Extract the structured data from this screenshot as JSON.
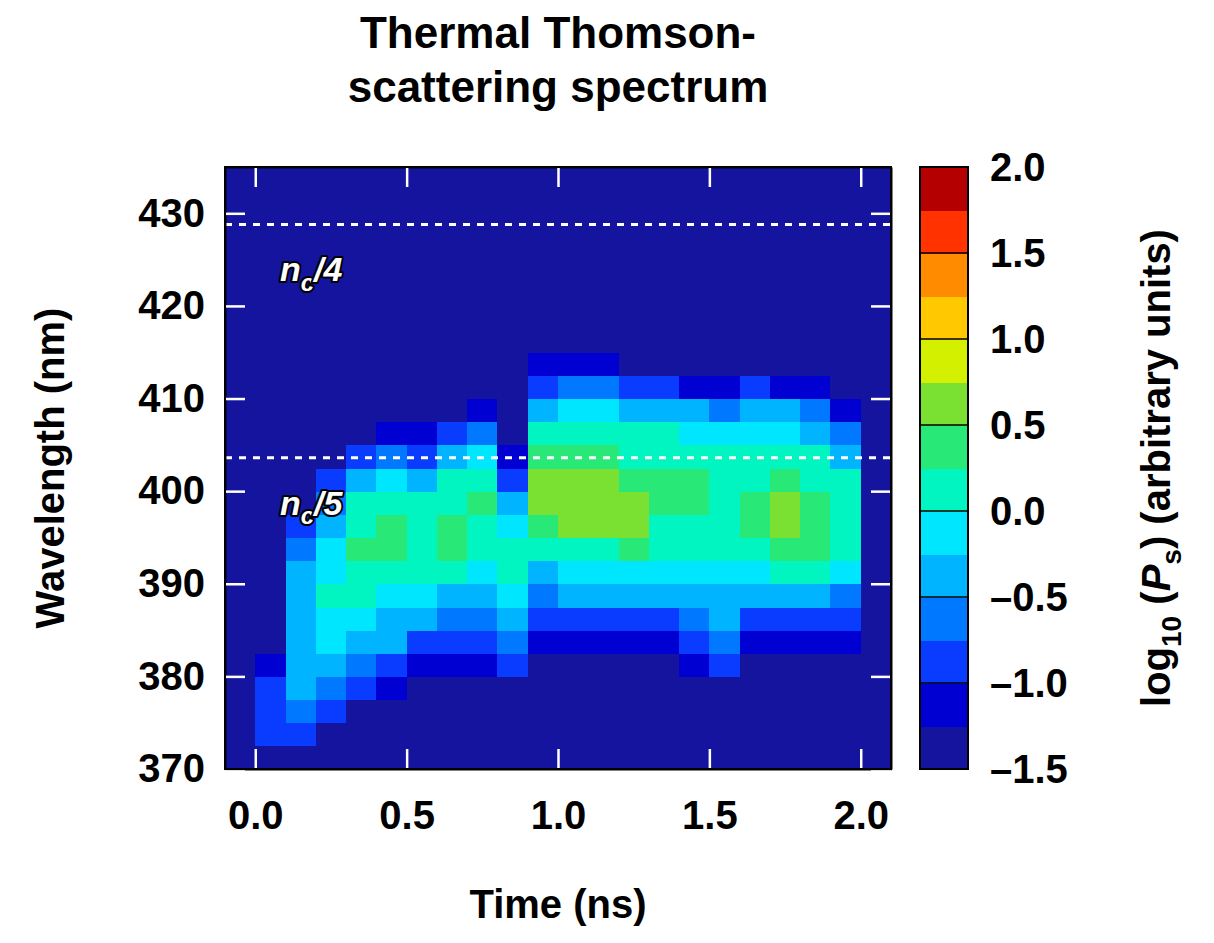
{
  "chart_data": {
    "type": "heatmap",
    "title": "Thermal Thomson-scattering spectrum",
    "x_label": "Time (ns)",
    "y_label": "Wavelength (nm)",
    "x": [
      -0.05,
      0.05,
      0.15,
      0.25,
      0.35,
      0.45,
      0.55,
      0.65,
      0.75,
      0.85,
      0.95,
      1.05,
      1.15,
      1.25,
      1.35,
      1.45,
      1.55,
      1.65,
      1.75,
      1.85,
      1.95,
      2.05
    ],
    "y": [
      371.25,
      373.75,
      376.25,
      378.75,
      381.25,
      383.75,
      386.25,
      388.75,
      391.25,
      393.75,
      396.25,
      398.75,
      401.25,
      403.75,
      406.25,
      408.75,
      411.25,
      413.75,
      416.25,
      418.75,
      421.25,
      423.75,
      426.25,
      428.75,
      431.25,
      433.75
    ],
    "z": [
      [
        -1.5,
        -1.3,
        -1.4,
        -1.5,
        -1.5,
        -1.5,
        -1.5,
        -1.5,
        -1.5,
        -1.5,
        -1.5,
        -1.5,
        -1.5,
        -1.5,
        -1.5,
        -1.5,
        -1.5,
        -1.5,
        -1.5,
        -1.5,
        -1.5,
        -1.5
      ],
      [
        -1.5,
        -1.0,
        -1.0,
        -1.3,
        -1.5,
        -1.5,
        -1.5,
        -1.5,
        -1.5,
        -1.5,
        -1.5,
        -1.5,
        -1.5,
        -1.5,
        -1.5,
        -1.5,
        -1.5,
        -1.5,
        -1.5,
        -1.5,
        -1.5,
        -1.5
      ],
      [
        -1.5,
        -0.9,
        -0.7,
        -1.0,
        -1.3,
        -1.5,
        -1.5,
        -1.5,
        -1.5,
        -1.5,
        -1.5,
        -1.5,
        -1.5,
        -1.5,
        -1.5,
        -1.5,
        -1.5,
        -1.5,
        -1.5,
        -1.5,
        -1.5,
        -1.5
      ],
      [
        -1.5,
        -1.0,
        -0.5,
        -0.6,
        -1.0,
        -1.2,
        -1.5,
        -1.5,
        -1.5,
        -1.3,
        -1.5,
        -1.5,
        -1.5,
        -1.5,
        -1.5,
        -1.5,
        -1.5,
        -1.5,
        -1.5,
        -1.5,
        -1.5,
        -1.5
      ],
      [
        -1.5,
        -1.2,
        -0.4,
        -0.3,
        -0.6,
        -0.8,
        -1.1,
        -1.2,
        -1.1,
        -0.9,
        -1.3,
        -1.3,
        -1.3,
        -1.3,
        -1.3,
        -1.2,
        -1.0,
        -1.3,
        -1.3,
        -1.3,
        -1.4,
        -1.5
      ],
      [
        -1.5,
        -1.5,
        -0.4,
        -0.2,
        -0.4,
        -0.5,
        -0.8,
        -0.9,
        -0.9,
        -0.6,
        -1.1,
        -1.1,
        -1.1,
        -1.1,
        -1.1,
        -0.9,
        -0.7,
        -1.1,
        -1.1,
        -1.1,
        -1.2,
        -1.5
      ],
      [
        -1.5,
        -1.5,
        -0.3,
        -0.1,
        -0.2,
        -0.3,
        -0.5,
        -0.6,
        -0.6,
        -0.3,
        -0.9,
        -0.8,
        -0.8,
        -0.8,
        -0.8,
        -0.7,
        -0.5,
        -0.8,
        -0.8,
        -0.8,
        -1.0,
        -1.5
      ],
      [
        -1.5,
        -1.5,
        -0.3,
        0.0,
        0.1,
        -0.1,
        -0.2,
        -0.3,
        -0.3,
        -0.1,
        -0.6,
        -0.5,
        -0.5,
        -0.5,
        -0.5,
        -0.4,
        -0.3,
        -0.4,
        -0.4,
        -0.4,
        -0.6,
        -1.5
      ],
      [
        -1.5,
        -1.5,
        -0.5,
        -0.1,
        0.2,
        0.1,
        0.1,
        0.0,
        -0.1,
        0.2,
        -0.3,
        -0.2,
        -0.2,
        -0.1,
        -0.2,
        -0.2,
        -0.1,
        -0.1,
        0.0,
        0.0,
        -0.2,
        -1.5
      ],
      [
        -1.5,
        -1.5,
        -0.7,
        -0.2,
        0.4,
        0.3,
        0.2,
        0.3,
        0.1,
        0.1,
        0.0,
        0.2,
        0.2,
        0.3,
        0.1,
        0.1,
        0.1,
        0.2,
        0.3,
        0.3,
        0.0,
        -1.5
      ],
      [
        -1.5,
        -1.5,
        -1.0,
        -0.4,
        0.2,
        0.3,
        0.2,
        0.3,
        0.2,
        -0.1,
        0.3,
        0.5,
        0.5,
        0.5,
        0.2,
        0.2,
        0.2,
        0.3,
        0.5,
        0.4,
        0.1,
        -1.5
      ],
      [
        -1.5,
        -1.5,
        -1.3,
        -0.7,
        0.0,
        0.2,
        0.1,
        0.2,
        0.3,
        -0.4,
        0.5,
        0.6,
        0.6,
        0.5,
        0.3,
        0.3,
        0.2,
        0.3,
        0.5,
        0.4,
        0.1,
        -1.5
      ],
      [
        -1.5,
        -1.5,
        -1.5,
        -1.0,
        -0.4,
        -0.1,
        -0.3,
        0.0,
        0.2,
        -0.8,
        0.5,
        0.6,
        0.55,
        0.4,
        0.3,
        0.3,
        0.2,
        0.2,
        0.3,
        0.2,
        0.0,
        -1.5
      ],
      [
        -1.5,
        -1.5,
        -1.5,
        -1.3,
        -0.9,
        -0.6,
        -0.8,
        -0.4,
        -0.2,
        -1.2,
        0.3,
        0.4,
        0.4,
        0.2,
        0.2,
        0.2,
        0.1,
        0.1,
        0.1,
        0.0,
        -0.3,
        -1.5
      ],
      [
        -1.5,
        -1.5,
        -1.5,
        -1.5,
        -1.3,
        -1.1,
        -1.2,
        -1.0,
        -0.7,
        -1.5,
        0.0,
        0.1,
        0.1,
        0.0,
        0.0,
        -0.1,
        -0.2,
        -0.1,
        -0.1,
        -0.3,
        -0.7,
        -1.5
      ],
      [
        -1.5,
        -1.5,
        -1.5,
        -1.5,
        -1.5,
        -1.5,
        -1.5,
        -1.3,
        -1.2,
        -1.5,
        -0.4,
        -0.2,
        -0.2,
        -0.3,
        -0.4,
        -0.5,
        -0.6,
        -0.4,
        -0.4,
        -0.7,
        -1.1,
        -1.5
      ],
      [
        -1.5,
        -1.5,
        -1.5,
        -1.5,
        -1.5,
        -1.5,
        -1.5,
        -1.5,
        -1.5,
        -1.5,
        -0.8,
        -0.6,
        -0.6,
        -0.8,
        -1.0,
        -1.1,
        -1.2,
        -1.0,
        -1.1,
        -1.2,
        -1.4,
        -1.5
      ],
      [
        -1.5,
        -1.5,
        -1.5,
        -1.5,
        -1.5,
        -1.5,
        -1.5,
        -1.5,
        -1.5,
        -1.5,
        -1.2,
        -1.1,
        -1.2,
        -1.3,
        -1.4,
        -1.4,
        -1.5,
        -1.4,
        -1.4,
        -1.5,
        -1.5,
        -1.5
      ],
      [
        -1.5,
        -1.5,
        -1.5,
        -1.5,
        -1.5,
        -1.5,
        -1.5,
        -1.5,
        -1.5,
        -1.5,
        -1.5,
        -1.4,
        -1.4,
        -1.5,
        -1.5,
        -1.5,
        -1.5,
        -1.5,
        -1.5,
        -1.5,
        -1.5,
        -1.5
      ],
      [
        -1.5,
        -1.5,
        -1.5,
        -1.5,
        -1.5,
        -1.5,
        -1.5,
        -1.5,
        -1.5,
        -1.5,
        -1.5,
        -1.5,
        -1.5,
        -1.5,
        -1.5,
        -1.5,
        -1.5,
        -1.5,
        -1.5,
        -1.5,
        -1.5,
        -1.5
      ],
      [
        -1.5,
        -1.5,
        -1.5,
        -1.5,
        -1.5,
        -1.5,
        -1.5,
        -1.5,
        -1.5,
        -1.5,
        -1.5,
        -1.5,
        -1.5,
        -1.5,
        -1.5,
        -1.5,
        -1.5,
        -1.5,
        -1.5,
        -1.5,
        -1.5,
        -1.5
      ],
      [
        -1.5,
        -1.5,
        -1.5,
        -1.5,
        -1.5,
        -1.5,
        -1.5,
        -1.5,
        -1.5,
        -1.5,
        -1.5,
        -1.5,
        -1.5,
        -1.5,
        -1.5,
        -1.5,
        -1.5,
        -1.5,
        -1.5,
        -1.5,
        -1.5,
        -1.5
      ],
      [
        -1.5,
        -1.5,
        -1.5,
        -1.5,
        -1.5,
        -1.5,
        -1.5,
        -1.5,
        -1.5,
        -1.5,
        -1.5,
        -1.5,
        -1.5,
        -1.5,
        -1.5,
        -1.5,
        -1.5,
        -1.5,
        -1.5,
        -1.5,
        -1.5,
        -1.5
      ],
      [
        -1.5,
        -1.5,
        -1.5,
        -1.5,
        -1.5,
        -1.5,
        -1.5,
        -1.5,
        -1.5,
        -1.5,
        -1.5,
        -1.5,
        -1.5,
        -1.5,
        -1.5,
        -1.5,
        -1.5,
        -1.5,
        -1.5,
        -1.5,
        -1.5,
        -1.5
      ],
      [
        -1.5,
        -1.5,
        -1.5,
        -1.5,
        -1.5,
        -1.5,
        -1.5,
        -1.5,
        -1.5,
        -1.5,
        -1.5,
        -1.5,
        -1.5,
        -1.5,
        -1.5,
        -1.5,
        -1.5,
        -1.5,
        -1.5,
        -1.5,
        -1.5,
        -1.5
      ],
      [
        -1.5,
        -1.5,
        -1.5,
        -1.5,
        -1.5,
        -1.5,
        -1.5,
        -1.5,
        -1.5,
        -1.5,
        -1.5,
        -1.5,
        -1.5,
        -1.5,
        -1.5,
        -1.5,
        -1.5,
        -1.5,
        -1.5,
        -1.5,
        -1.5,
        -1.5
      ]
    ],
    "xlim": [
      -0.1,
      2.1
    ],
    "xticks": [
      {
        "value": 0,
        "label": "0.0"
      },
      {
        "value": 0.5,
        "label": "0.5"
      },
      {
        "value": 1,
        "label": "1.0"
      },
      {
        "value": 1.5,
        "label": "1.5"
      },
      {
        "value": 2,
        "label": "2.0"
      }
    ],
    "ylim": [
      370,
      435
    ],
    "yticks": [
      370,
      380,
      390,
      400,
      410,
      420,
      430
    ],
    "colorbar": {
      "label": [
        {
          "text": "log"
        },
        {
          "sub": "10"
        },
        {
          "text": " ("
        },
        {
          "italic": "P"
        },
        {
          "sub": "s"
        },
        {
          "text": ") (arbitrary units)"
        }
      ],
      "lim": [
        -1.5,
        2.0
      ],
      "ticks": [
        {
          "value": -1.5,
          "label": "–1.5"
        },
        {
          "value": -1,
          "label": "–1.0"
        },
        {
          "value": -0.5,
          "label": "–0.5"
        },
        {
          "value": 0,
          "label": "0.0"
        },
        {
          "value": 0.5,
          "label": "0.5"
        },
        {
          "value": 1,
          "label": "1.0"
        },
        {
          "value": 1.5,
          "label": "1.5"
        },
        {
          "value": 2,
          "label": "2.0"
        }
      ]
    },
    "annotations": [
      {
        "y": 428.8,
        "label": [
          {
            "italic": "n"
          },
          {
            "sub": "c"
          },
          {
            "text": "/4"
          }
        ]
      },
      {
        "y": 403.6,
        "label": [
          {
            "italic": "n"
          },
          {
            "sub": "c"
          },
          {
            "text": "/5"
          }
        ]
      }
    ]
  }
}
